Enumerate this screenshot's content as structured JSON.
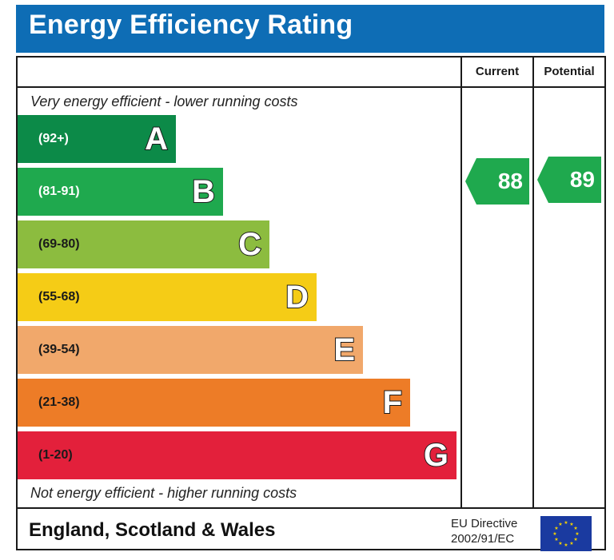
{
  "title": "Energy Efficiency Rating",
  "columns": {
    "current": "Current",
    "potential": "Potential"
  },
  "top_caption": "Very energy efficient - lower running costs",
  "bottom_caption": "Not energy efficient - higher running costs",
  "footer": {
    "country": "England, Scotland & Wales",
    "directive_line1": "EU Directive",
    "directive_line2": "2002/91/EC"
  },
  "colors": {
    "title_bar": "#0e6db5",
    "A": "#0c8a48",
    "B": "#1fa94e",
    "C": "#8cbc3f",
    "D": "#f5cc16",
    "E": "#f1a86b",
    "F": "#ed7c27",
    "G": "#e3203b",
    "eu_flag": "#1a3aa0",
    "eu_stars": "#f5d300"
  },
  "chart_data": {
    "type": "bar",
    "title": "Energy Efficiency Rating",
    "categories": [
      "A",
      "B",
      "C",
      "D",
      "E",
      "F",
      "G"
    ],
    "ranges": [
      "(92+)",
      "(81-91)",
      "(69-80)",
      "(55-68)",
      "(39-54)",
      "(21-38)",
      "(1-20)"
    ],
    "current": {
      "value": 88,
      "band": "B"
    },
    "potential": {
      "value": 89,
      "band": "B"
    }
  }
}
